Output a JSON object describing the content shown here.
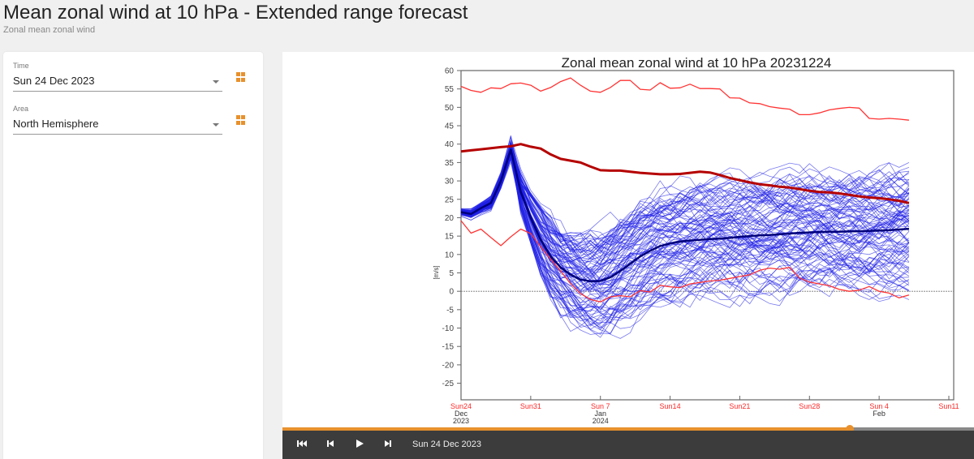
{
  "header": {
    "title": "Mean zonal wind at 10 hPa - Extended range forecast",
    "subtitle": "Zonal mean zonal wind"
  },
  "sidebar": {
    "time_label": "Time",
    "time_value": "Sun 24 Dec 2023",
    "area_label": "Area",
    "area_value": "North Hemisphere"
  },
  "player": {
    "first_icon": "skip-first-icon",
    "prev_icon": "step-back-icon",
    "play_icon": "play-icon",
    "next_icon": "step-forward-icon",
    "current_date": "Sun 24 Dec 2023",
    "progress": 0.82
  },
  "colors": {
    "accent": "#e8912d",
    "ensemble": "#1f1fe6",
    "ens_mean": "#00007a",
    "climate_bounds": "#ff3333",
    "climate_mean": "#b50000"
  },
  "chart_data": {
    "type": "line",
    "title": "Zonal mean zonal wind at 10 hPa 20231224",
    "ylabel": "[m/s]",
    "xlabel": "",
    "ylim": [
      -29.5,
      60
    ],
    "xlim_days": [
      0,
      49
    ],
    "yticks": [
      60,
      55,
      50,
      45,
      40,
      35,
      30,
      25,
      20,
      15,
      10,
      5,
      0,
      -5,
      -10,
      -15,
      -20,
      -25
    ],
    "xticks": [
      {
        "day": 0,
        "label": "Sun24",
        "sub1": "Dec",
        "sub2": "2023"
      },
      {
        "day": 7,
        "label": "Sun31",
        "sub1": "",
        "sub2": ""
      },
      {
        "day": 14,
        "label": "Sun 7",
        "sub1": "Jan",
        "sub2": "2024"
      },
      {
        "day": 21,
        "label": "Sun14",
        "sub1": "",
        "sub2": ""
      },
      {
        "day": 28,
        "label": "Sun21",
        "sub1": "",
        "sub2": ""
      },
      {
        "day": 35,
        "label": "Sun28",
        "sub1": "",
        "sub2": ""
      },
      {
        "day": 42,
        "label": "Sun 4",
        "sub1": "Feb",
        "sub2": ""
      },
      {
        "day": 49,
        "label": "Sun11",
        "sub1": "",
        "sub2": ""
      }
    ],
    "zero_line": true,
    "series": [
      {
        "name": "climate_max",
        "x": [
          0,
          1,
          2,
          3,
          4,
          5,
          6,
          7,
          8,
          9,
          10,
          11,
          12,
          13,
          14,
          15,
          16,
          17,
          18,
          19,
          20,
          21,
          22,
          23,
          24,
          25,
          26,
          27,
          28,
          29,
          30,
          31,
          32,
          33,
          34,
          35,
          36,
          37,
          38,
          39,
          40,
          41,
          42,
          43,
          44,
          45
        ],
        "values": [
          55.7,
          54.6,
          54.1,
          55.3,
          55.1,
          56.4,
          56.6,
          56.0,
          54.4,
          55.4,
          57.0,
          58.0,
          56.0,
          54.4,
          54.1,
          55.4,
          57.3,
          57.3,
          54.9,
          54.7,
          56.7,
          55.2,
          55.3,
          56.3,
          55.1,
          55.1,
          55.0,
          52.6,
          52.5,
          51.2,
          51.0,
          50.2,
          49.8,
          49.5,
          48.0,
          48.0,
          48.5,
          49.3,
          49.7,
          50.0,
          49.8,
          47.0,
          46.8,
          47.0,
          46.8,
          46.5
        ]
      },
      {
        "name": "climate_mean",
        "x": [
          0,
          1,
          2,
          3,
          4,
          5,
          6,
          7,
          8,
          9,
          10,
          11,
          12,
          13,
          14,
          15,
          16,
          17,
          18,
          19,
          20,
          21,
          22,
          23,
          24,
          25,
          26,
          27,
          28,
          29,
          30,
          31,
          32,
          33,
          34,
          35,
          36,
          37,
          38,
          39,
          40,
          41,
          42,
          43,
          44,
          45
        ],
        "values": [
          38.0,
          38.3,
          38.6,
          38.9,
          39.2,
          39.4,
          40.0,
          39.3,
          38.8,
          37.2,
          36.0,
          35.5,
          35.0,
          33.9,
          32.9,
          32.8,
          32.8,
          32.5,
          32.2,
          32.0,
          31.8,
          31.8,
          31.9,
          32.2,
          32.5,
          32.3,
          31.6,
          30.8,
          30.2,
          29.6,
          29.1,
          28.8,
          28.4,
          28.2,
          27.8,
          27.3,
          27.0,
          26.9,
          26.6,
          26.2,
          25.8,
          25.5,
          25.3,
          25.0,
          24.6,
          24.0
        ]
      },
      {
        "name": "climate_min",
        "x": [
          0,
          1,
          2,
          3,
          4,
          5,
          6,
          7,
          8,
          9,
          10,
          11,
          12,
          13,
          14,
          15,
          16,
          17,
          18,
          19,
          20,
          21,
          22,
          23,
          24,
          25,
          26,
          27,
          28,
          29,
          30,
          31,
          32,
          33,
          34,
          35,
          36,
          37,
          38,
          39,
          40,
          41,
          42,
          43,
          44,
          45
        ],
        "values": [
          19.2,
          15.8,
          16.9,
          14.6,
          12.4,
          14.8,
          16.9,
          15.7,
          12.1,
          8.7,
          5.5,
          2.1,
          -0.6,
          -2.2,
          -2.9,
          -1.5,
          -1.2,
          -1.5,
          0.2,
          -0.2,
          1.6,
          1.2,
          1.0,
          2.0,
          2.4,
          2.8,
          3.0,
          3.5,
          4.0,
          4.5,
          5.7,
          6.3,
          6.0,
          6.5,
          3.6,
          2.5,
          2.0,
          1.5,
          0.5,
          0.0,
          0.3,
          1.3,
          0.0,
          -0.5,
          -1.8,
          -1.0
        ]
      },
      {
        "name": "ensemble_mean",
        "x": [
          0,
          1,
          2,
          3,
          4,
          5,
          6,
          7,
          8,
          9,
          10,
          11,
          12,
          13,
          14,
          15,
          16,
          17,
          18,
          19,
          20,
          21,
          22,
          23,
          24,
          25,
          26,
          27,
          28,
          29,
          30,
          31,
          32,
          33,
          34,
          35,
          36,
          37,
          38,
          39,
          40,
          41,
          42,
          43,
          44,
          45
        ],
        "values": [
          21.5,
          21.0,
          22.6,
          24.0,
          30.0,
          38.5,
          27.0,
          20.0,
          14.0,
          9.5,
          6.5,
          4.5,
          3.2,
          2.7,
          2.8,
          3.8,
          5.5,
          7.5,
          9.5,
          11.0,
          12.3,
          13.0,
          13.5,
          13.8,
          14.0,
          14.2,
          14.3,
          14.5,
          14.8,
          15.0,
          15.2,
          15.3,
          15.5,
          15.7,
          15.9,
          16.0,
          16.1,
          16.2,
          16.2,
          16.3,
          16.3,
          16.4,
          16.5,
          16.6,
          16.8,
          17.0
        ]
      }
    ],
    "ensemble_members": 101
  }
}
